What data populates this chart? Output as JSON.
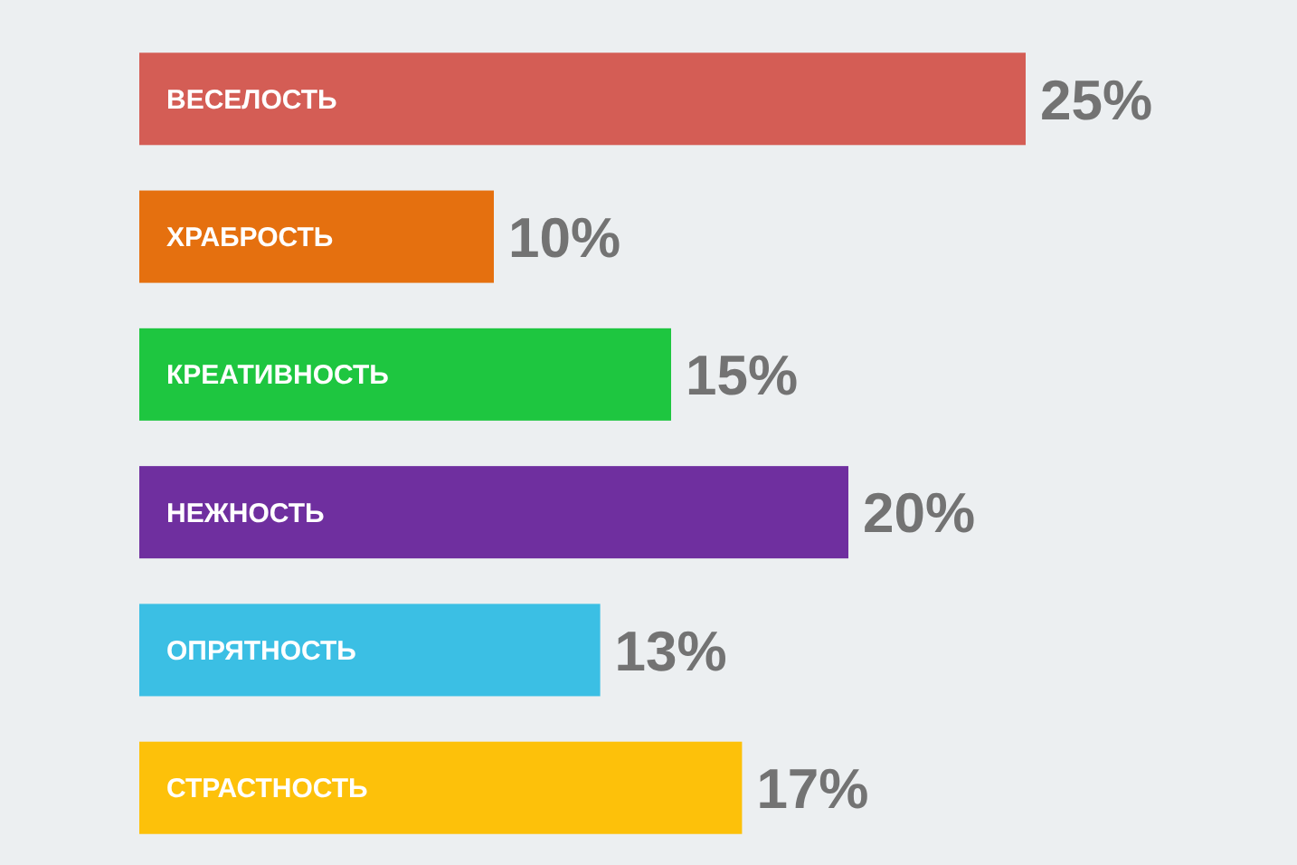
{
  "chart_data": {
    "type": "bar",
    "orientation": "horizontal",
    "categories": [
      "ВЕСЕЛОСТЬ",
      "ХРАБРОСТЬ",
      "КРЕАТИВНОСТЬ",
      "НЕЖНОСТЬ",
      "ОПРЯТНОСТЬ",
      "СТРАСТНОСТЬ"
    ],
    "values": [
      25,
      10,
      15,
      20,
      13,
      17
    ],
    "colors": [
      "#d45d55",
      "#e5700f",
      "#1ec640",
      "#6f2f9f",
      "#3bbfe4",
      "#fdc10a"
    ],
    "value_labels": [
      "25%",
      "10%",
      "15%",
      "20%",
      "13%",
      "17%"
    ]
  }
}
